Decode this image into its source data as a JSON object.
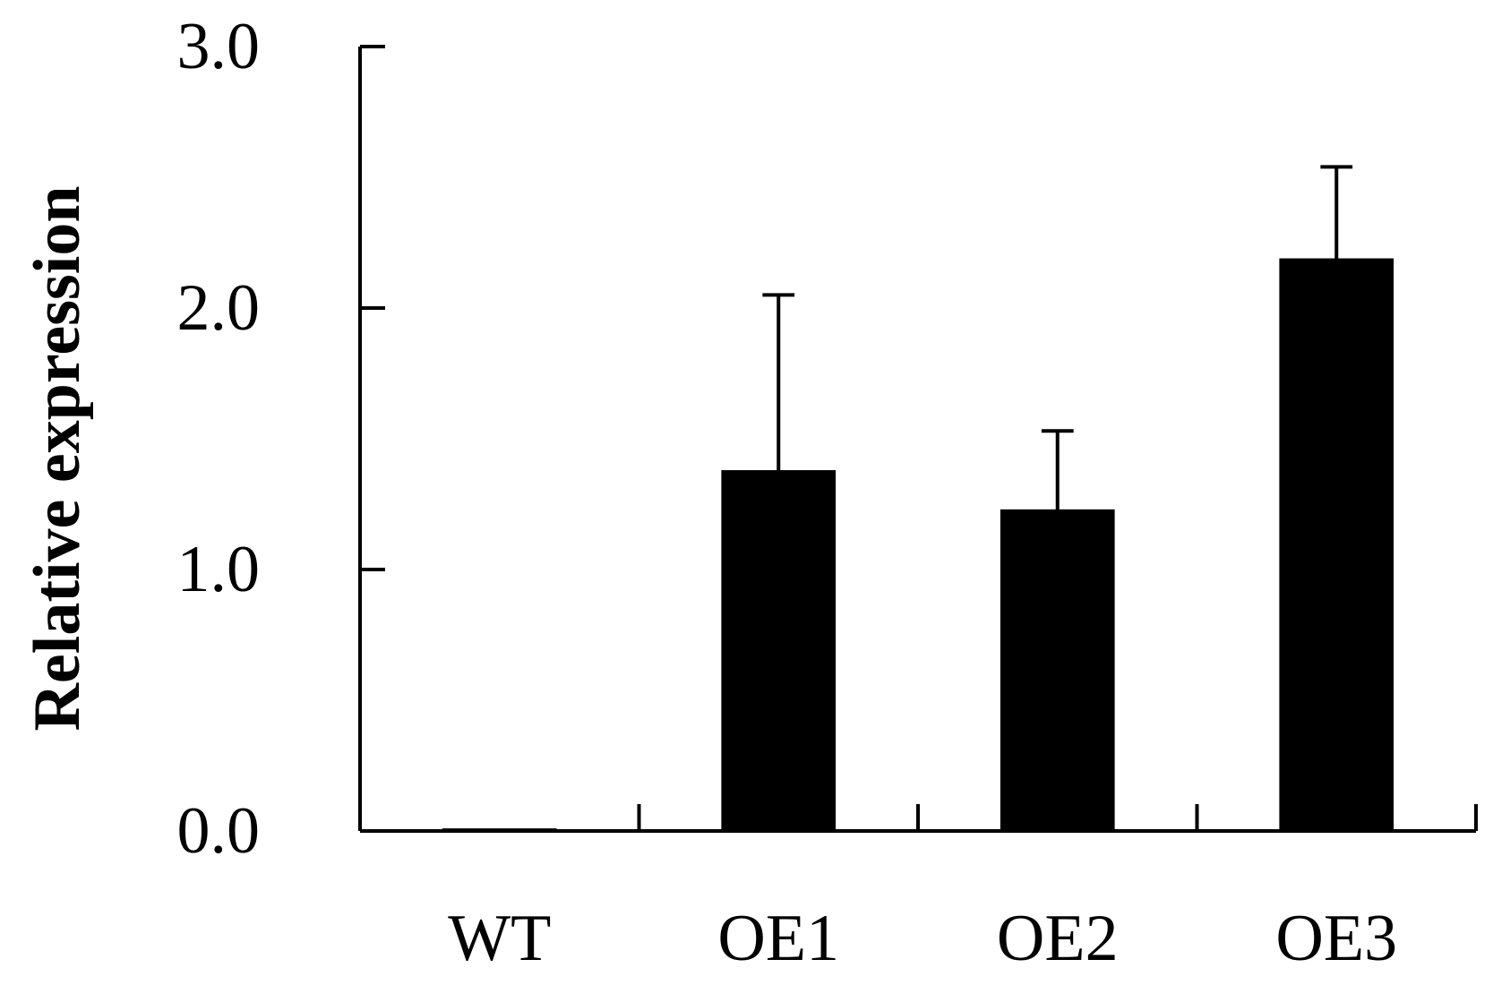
{
  "chart_data": {
    "type": "bar",
    "title": "",
    "xlabel": "",
    "ylabel": "Relative expression",
    "categories": [
      "WT",
      "OE1",
      "OE2",
      "OE3"
    ],
    "values": [
      0.01,
      1.38,
      1.23,
      2.19
    ],
    "error": [
      0.0,
      0.67,
      0.3,
      0.35
    ],
    "ylim": [
      0,
      3
    ],
    "yticks": [
      0,
      1,
      2,
      3
    ],
    "ytick_labels": [
      "0.0",
      "1.0",
      "2.0",
      "3.0"
    ],
    "grid": false,
    "legend": "none",
    "bar_color": "#000000",
    "axis_color": "#000000"
  }
}
